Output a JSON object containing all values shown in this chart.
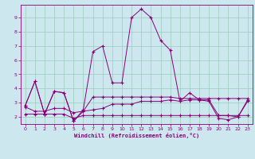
{
  "xlabel": "Windchill (Refroidissement éolien,°C)",
  "bg_color": "#cce8ee",
  "line_color": "#880077",
  "grid_color": "#99ccbb",
  "xlim": [
    -0.5,
    23.5
  ],
  "ylim": [
    1.5,
    9.9
  ],
  "xticks": [
    0,
    1,
    2,
    3,
    4,
    5,
    6,
    7,
    8,
    9,
    10,
    11,
    12,
    13,
    14,
    15,
    16,
    17,
    18,
    19,
    20,
    21,
    22,
    23
  ],
  "yticks": [
    2,
    3,
    4,
    5,
    6,
    7,
    8,
    9
  ],
  "series": [
    [
      2.8,
      4.5,
      2.2,
      3.8,
      3.7,
      1.7,
      2.5,
      6.6,
      7.0,
      4.4,
      4.4,
      9.0,
      9.6,
      9.0,
      7.4,
      6.7,
      3.1,
      3.7,
      3.2,
      3.1,
      1.9,
      1.8,
      2.0,
      3.2
    ],
    [
      2.8,
      4.5,
      2.2,
      3.8,
      3.7,
      1.7,
      2.4,
      3.4,
      3.4,
      3.4,
      3.4,
      3.4,
      3.4,
      3.4,
      3.4,
      3.4,
      3.3,
      3.3,
      3.3,
      3.3,
      3.3,
      3.3,
      3.3,
      3.3
    ],
    [
      2.2,
      2.2,
      2.2,
      2.2,
      2.2,
      1.9,
      2.1,
      2.1,
      2.1,
      2.1,
      2.1,
      2.1,
      2.1,
      2.1,
      2.1,
      2.1,
      2.1,
      2.1,
      2.1,
      2.1,
      2.1,
      2.1,
      2.1,
      2.1
    ],
    [
      2.7,
      2.4,
      2.4,
      2.6,
      2.6,
      2.3,
      2.4,
      2.5,
      2.6,
      2.9,
      2.9,
      2.9,
      3.1,
      3.1,
      3.1,
      3.2,
      3.1,
      3.2,
      3.2,
      3.2,
      2.1,
      2.1,
      2.0,
      3.1
    ]
  ]
}
